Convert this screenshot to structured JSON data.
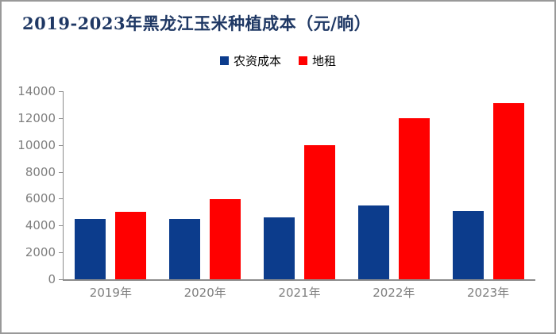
{
  "header": {
    "title": "2019-2023年黑龙江玉米种植成本（元/晌）"
  },
  "chart_data": {
    "type": "bar",
    "title": "2019-2023年黑龙江玉米种植成本（元/晌）",
    "categories": [
      "2019年",
      "2020年",
      "2021年",
      "2022年",
      "2023年"
    ],
    "series": [
      {
        "key": "input-cost",
        "name": "农资成本",
        "color": "#0C3C8C",
        "values": [
          4500,
          4500,
          4600,
          5500,
          5100
        ]
      },
      {
        "key": "land-rent",
        "name": "地租",
        "color": "#FF0000",
        "values": [
          5000,
          5950,
          10000,
          12000,
          13100
        ]
      }
    ],
    "xlabel": "",
    "ylabel": "",
    "ylim": [
      0,
      14000
    ],
    "yticks": [
      0,
      2000,
      4000,
      6000,
      8000,
      10000,
      12000,
      14000
    ],
    "grid": false,
    "legend_position": "top-center"
  },
  "colors": {
    "title": "#1F3864",
    "axis": "#8C8C8C",
    "tick_label": "#7F7F7F",
    "legend_text": "#000000",
    "frame_border": "#999999",
    "background": "#FFFFFF"
  }
}
